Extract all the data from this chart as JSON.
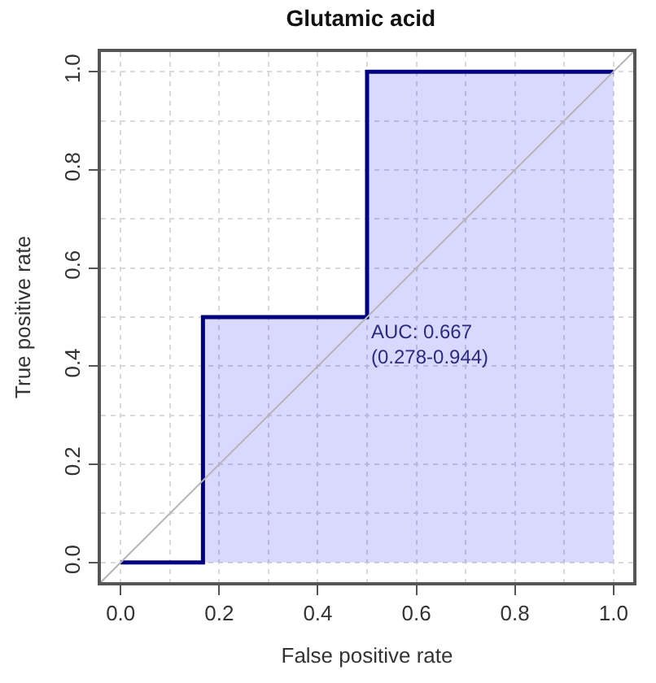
{
  "chart_data": {
    "type": "area",
    "title": "Glutamic acid",
    "xlabel": "False positive rate",
    "ylabel": "True positive rate",
    "series": [
      {
        "color": "#000080",
        "x": [
          0,
          0.167,
          0.167,
          0.5,
          0.5,
          1
        ],
        "values": [
          0,
          0,
          0.5,
          0.5,
          1,
          1
        ],
        "line_style": "solid"
      },
      {
        "type": "line",
        "color": "#b4b4b4",
        "x": [
          -0.04,
          1.04
        ],
        "values": [
          -0.04,
          1.04
        ],
        "line_style": "solid"
      }
    ],
    "annotations": [
      {
        "text": "AUC: 0.667\n(0.278-0.944)",
        "x": 0.5,
        "y": 0.5
      }
    ],
    "xlim": [
      -0.04,
      1.04
    ],
    "ylim": [
      -0.04,
      1.04
    ],
    "xticks": [
      {
        "value": 0,
        "label": "0.0"
      },
      0.2,
      0.4,
      0.6,
      0.8,
      {
        "value": 1,
        "label": "1.0"
      }
    ],
    "yticks": [
      {
        "value": 0,
        "label": "0.0"
      },
      0.2,
      0.4,
      0.6,
      0.8,
      {
        "value": 1,
        "label": "1.0"
      }
    ],
    "grid": true,
    "marker": "none"
  }
}
